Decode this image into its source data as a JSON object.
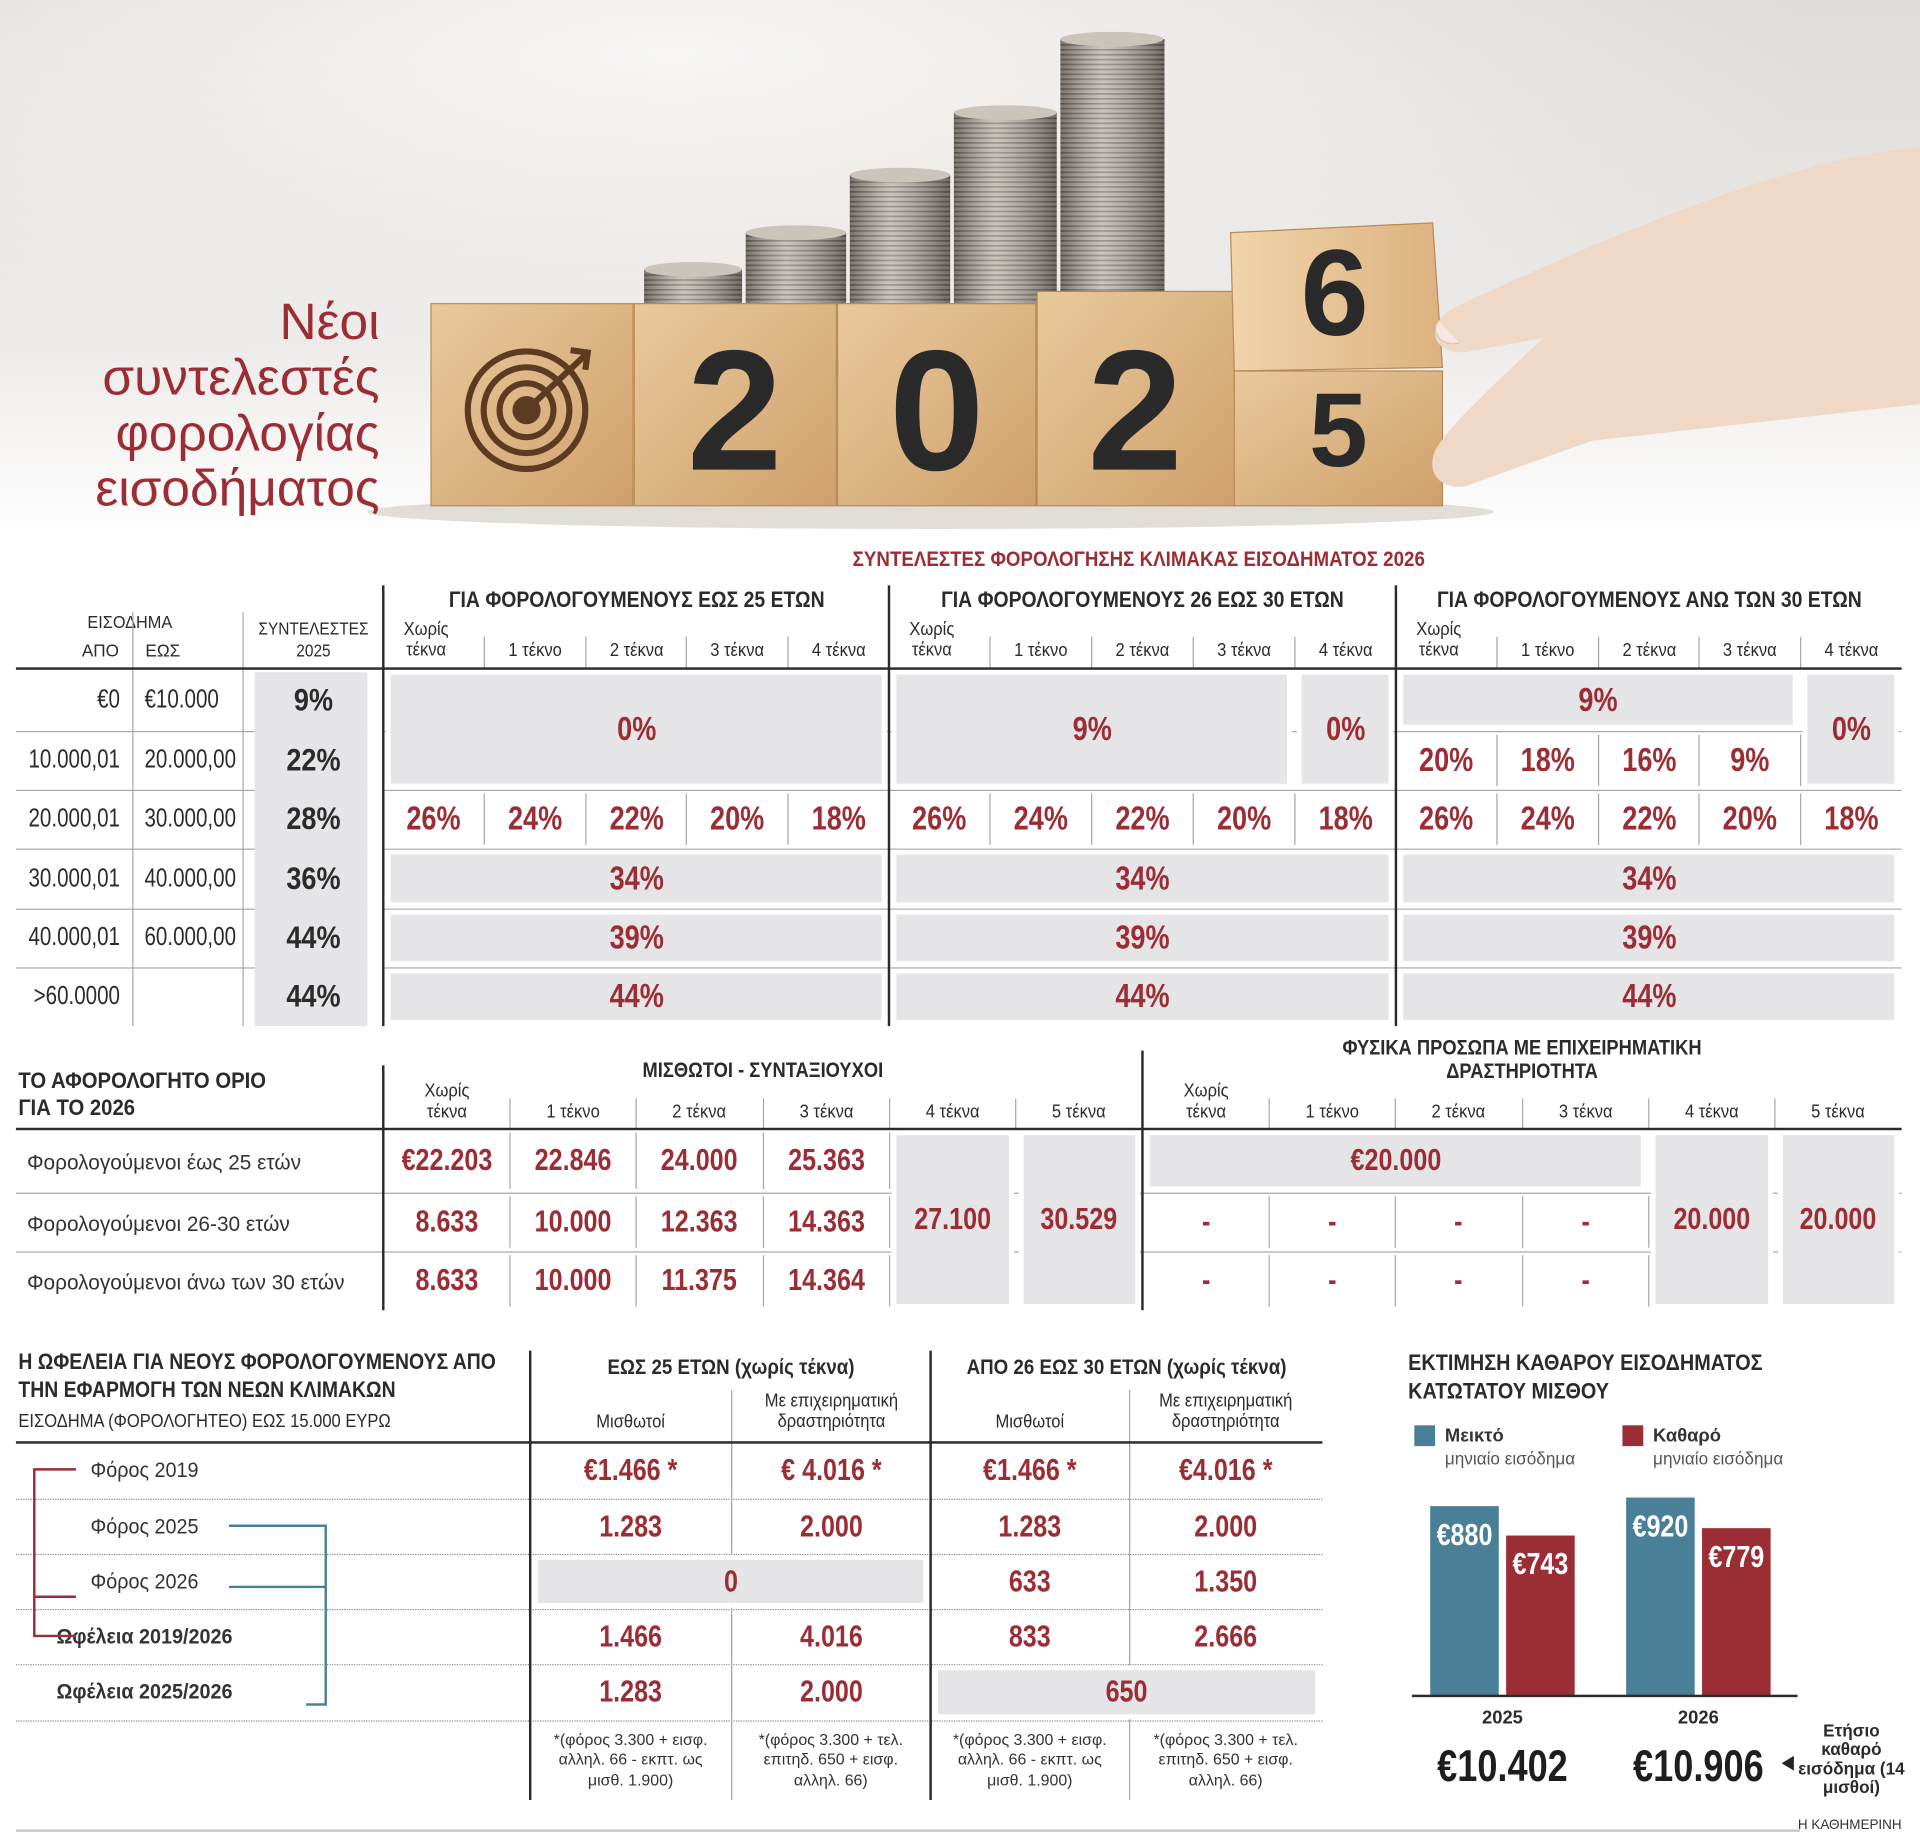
{
  "header": {
    "title": "Νέοι συντελεστές φορολογίας εισοδήματος",
    "image_text": [
      "2",
      "0",
      "2",
      "6",
      "5"
    ]
  },
  "rates_table": {
    "title": "ΣΥΝΤΕΛΕΣΤΕΣ ΦΟΡΟΛΟΓΗΣΗΣ ΚΛΙΜΑΚΑΣ ΕΙΣΟΔΗΜΑΤΟΣ 2026",
    "income_header": "ΕΙΣΟΔΗΜΑ",
    "from_header": "ΑΠΟ",
    "to_header": "ΕΩΣ",
    "rate_2025_header": "ΣΥΝΤΕΛΕΣΤΕΣ 2025",
    "subcolumns": [
      "Χωρίς τέκνα",
      "1 τέκνο",
      "2 τέκνα",
      "3 τέκνα",
      "4 τέκνα"
    ],
    "rows": [
      {
        "from": "€0",
        "to": "€10.000",
        "rate_2025": "9%"
      },
      {
        "from": "10.000,01",
        "to": "20.000,00",
        "rate_2025": "22%"
      },
      {
        "from": "20.000,01",
        "to": "30.000,00",
        "rate_2025": "28%"
      },
      {
        "from": "30.000,01",
        "to": "40.000,00",
        "rate_2025": "36%"
      },
      {
        "from": "40.000,01",
        "to": "60.000,00",
        "rate_2025": "44%"
      },
      {
        "from": ">60.0000",
        "to": null,
        "rate_2025": "44%"
      }
    ],
    "groups": [
      {
        "title": "ΓΙΑ ΦΟΡΟΛΟΓΟΥΜΕΝΟΥΣ ΕΩΣ 25 ΕΤΩΝ",
        "cells": [
          {
            "text": "0%",
            "row": 0,
            "col": 0,
            "rowspan": 2,
            "colspan": 5,
            "shaded": true
          },
          {
            "text": "26%",
            "row": 2,
            "col": 0
          },
          {
            "text": "24%",
            "row": 2,
            "col": 1
          },
          {
            "text": "22%",
            "row": 2,
            "col": 2
          },
          {
            "text": "20%",
            "row": 2,
            "col": 3
          },
          {
            "text": "18%",
            "row": 2,
            "col": 4
          },
          {
            "text": "34%",
            "row": 3,
            "col": 0,
            "colspan": 5,
            "shaded": true
          },
          {
            "text": "39%",
            "row": 4,
            "col": 0,
            "colspan": 5,
            "shaded": true
          },
          {
            "text": "44%",
            "row": 5,
            "col": 0,
            "colspan": 5,
            "shaded": true
          }
        ]
      },
      {
        "title": "ΓΙΑ ΦΟΡΟΛΟΓΟΥΜΕΝΟΥΣ 26 ΕΩΣ 30 ΕΤΩΝ",
        "cells": [
          {
            "text": "9%",
            "row": 0,
            "col": 0,
            "rowspan": 2,
            "colspan": 4,
            "shaded": true
          },
          {
            "text": "0%",
            "row": 0,
            "col": 4,
            "rowspan": 2,
            "shaded": true
          },
          {
            "text": "26%",
            "row": 2,
            "col": 0
          },
          {
            "text": "24%",
            "row": 2,
            "col": 1
          },
          {
            "text": "22%",
            "row": 2,
            "col": 2
          },
          {
            "text": "20%",
            "row": 2,
            "col": 3
          },
          {
            "text": "18%",
            "row": 2,
            "col": 4
          },
          {
            "text": "34%",
            "row": 3,
            "col": 0,
            "colspan": 5,
            "shaded": true
          },
          {
            "text": "39%",
            "row": 4,
            "col": 0,
            "colspan": 5,
            "shaded": true
          },
          {
            "text": "44%",
            "row": 5,
            "col": 0,
            "colspan": 5,
            "shaded": true
          }
        ]
      },
      {
        "title": "ΓΙΑ ΦΟΡΟΛΟΓΟΥΜΕΝΟΥΣ ΑΝΩ ΤΩΝ 30 ΕΤΩΝ",
        "cells": [
          {
            "text": "9%",
            "row": 0,
            "col": 0,
            "colspan": 4,
            "shaded": true
          },
          {
            "text": "0%",
            "row": 0,
            "col": 4,
            "rowspan": 2,
            "shaded": true
          },
          {
            "text": "20%",
            "row": 1,
            "col": 0
          },
          {
            "text": "18%",
            "row": 1,
            "col": 1
          },
          {
            "text": "16%",
            "row": 1,
            "col": 2
          },
          {
            "text": "9%",
            "row": 1,
            "col": 3
          },
          {
            "text": "26%",
            "row": 2,
            "col": 0
          },
          {
            "text": "24%",
            "row": 2,
            "col": 1
          },
          {
            "text": "22%",
            "row": 2,
            "col": 2
          },
          {
            "text": "20%",
            "row": 2,
            "col": 3
          },
          {
            "text": "18%",
            "row": 2,
            "col": 4
          },
          {
            "text": "34%",
            "row": 3,
            "col": 0,
            "colspan": 5,
            "shaded": true
          },
          {
            "text": "39%",
            "row": 4,
            "col": 0,
            "colspan": 5,
            "shaded": true
          },
          {
            "text": "44%",
            "row": 5,
            "col": 0,
            "colspan": 5,
            "shaded": true
          }
        ]
      }
    ]
  },
  "tax_free_table": {
    "title": "ΤΟ ΑΦΟΡΟΛΟΓΗΤΟ ΟΡΙΟ ΓΙΑ ΤΟ 2026",
    "row_labels": [
      "Φορολογούμενοι έως 25 ετών",
      "Φορολογούμενοι 26-30 ετών",
      "Φορολογούμενοι άνω των 30 ετών"
    ],
    "subcolumns": [
      "Χωρίς τέκνα",
      "1 τέκνο",
      "2 τέκνα",
      "3 τέκνα",
      "4 τέκνα",
      "5 τέκνα"
    ],
    "groups": [
      {
        "title": "ΜΙΣΘΩΤΟΙ - ΣΥΝΤΑΞΙΟΥΧΟΙ",
        "cells": [
          {
            "text": "€22.203",
            "row": 0,
            "col": 0
          },
          {
            "text": "22.846",
            "row": 0,
            "col": 1
          },
          {
            "text": "24.000",
            "row": 0,
            "col": 2
          },
          {
            "text": "25.363",
            "row": 0,
            "col": 3
          },
          {
            "text": "27.100",
            "row": 0,
            "col": 4,
            "rowspan": 3,
            "shaded": true
          },
          {
            "text": "30.529",
            "row": 0,
            "col": 5,
            "rowspan": 3,
            "shaded": true
          },
          {
            "text": "8.633",
            "row": 1,
            "col": 0
          },
          {
            "text": "10.000",
            "row": 1,
            "col": 1
          },
          {
            "text": "12.363",
            "row": 1,
            "col": 2
          },
          {
            "text": "14.363",
            "row": 1,
            "col": 3
          },
          {
            "text": "8.633",
            "row": 2,
            "col": 0
          },
          {
            "text": "10.000",
            "row": 2,
            "col": 1
          },
          {
            "text": "11.375",
            "row": 2,
            "col": 2
          },
          {
            "text": "14.364",
            "row": 2,
            "col": 3
          }
        ]
      },
      {
        "title": "ΦΥΣΙΚΑ ΠΡΟΣΩΠΑ ΜΕ ΕΠΙΧΕΙΡΗΜΑΤΙΚΗ ΔΡΑΣΤΗΡΙΟΤΗΤΑ",
        "cells": [
          {
            "text": "€20.000",
            "row": 0,
            "col": 0,
            "colspan": 4,
            "shaded": true
          },
          {
            "text": "20.000",
            "row": 0,
            "col": 4,
            "rowspan": 3,
            "shaded": true
          },
          {
            "text": "20.000",
            "row": 0,
            "col": 5,
            "rowspan": 3,
            "shaded": true
          },
          {
            "text": "-",
            "row": 1,
            "col": 0
          },
          {
            "text": "-",
            "row": 1,
            "col": 1
          },
          {
            "text": "-",
            "row": 1,
            "col": 2
          },
          {
            "text": "-",
            "row": 1,
            "col": 3
          },
          {
            "text": "-",
            "row": 2,
            "col": 0
          },
          {
            "text": "-",
            "row": 2,
            "col": 1
          },
          {
            "text": "-",
            "row": 2,
            "col": 2
          },
          {
            "text": "-",
            "row": 2,
            "col": 3
          }
        ]
      }
    ]
  },
  "benefit_table": {
    "title": "Η ΩΦΕΛΕΙΑ ΓΙΑ ΝΕΟΥΣ ΦΟΡΟΛΟΓΟΥΜΕΝΟΥΣ ΑΠΟ ΤΗΝ ΕΦΑΡΜΟΓΗ ΤΩΝ ΝΕΩΝ ΚΛΙΜΑΚΩΝ",
    "subtitle": "ΕΙΣΟΔΗΜΑ (ΦΟΡΟΛΟΓΗΤΕΟ) ΕΩΣ 15.000 ΕΥΡΩ",
    "row_labels": [
      "Φόρος 2019",
      "Φόρος 2025",
      "Φόρος 2026",
      "Ωφέλεια 2019/2026",
      "Ωφέλεια 2025/2026"
    ],
    "groups": [
      {
        "title": "ΕΩΣ 25 ΕΤΩΝ (χωρίς τέκνα)",
        "subcolumns": [
          "Μισθωτοί",
          "Με επιχειρηματική δραστηριότητα"
        ],
        "cells": [
          {
            "text": "€1.466 *",
            "row": 0,
            "col": 0
          },
          {
            "text": "€ 4.016 *",
            "row": 0,
            "col": 1
          },
          {
            "text": "1.283",
            "row": 1,
            "col": 0
          },
          {
            "text": "2.000",
            "row": 1,
            "col": 1
          },
          {
            "text": "0",
            "row": 2,
            "col": 0,
            "colspan": 2,
            "shaded": true
          },
          {
            "text": "1.466",
            "row": 3,
            "col": 0
          },
          {
            "text": "4.016",
            "row": 3,
            "col": 1
          },
          {
            "text": "1.283",
            "row": 4,
            "col": 0
          },
          {
            "text": "2.000",
            "row": 4,
            "col": 1
          }
        ],
        "footnotes": [
          "*(φόρος 3.300 + εισφ. αλληλ. 66 - εκπτ. ως μισθ. 1.900)",
          "*(φόρος 3.300 + τελ. επιτηδ. 650 + εισφ. αλληλ. 66)"
        ]
      },
      {
        "title": "ΑΠΟ 26 ΕΩΣ 30 ΕΤΩΝ (χωρίς τέκνα)",
        "subcolumns": [
          "Μισθωτοί",
          "Με επιχειρηματική δραστηριότητα"
        ],
        "cells": [
          {
            "text": "€1.466 *",
            "row": 0,
            "col": 0
          },
          {
            "text": "€4.016 *",
            "row": 0,
            "col": 1
          },
          {
            "text": "1.283",
            "row": 1,
            "col": 0
          },
          {
            "text": "2.000",
            "row": 1,
            "col": 1
          },
          {
            "text": "633",
            "row": 2,
            "col": 0
          },
          {
            "text": "1.350",
            "row": 2,
            "col": 1
          },
          {
            "text": "833",
            "row": 3,
            "col": 0
          },
          {
            "text": "2.666",
            "row": 3,
            "col": 1
          },
          {
            "text": "650",
            "row": 4,
            "col": 0,
            "colspan": 2,
            "shaded": true
          }
        ],
        "footnotes": [
          "*(φόρος 3.300 + εισφ. αλληλ. 66 - εκπτ. ως μισθ. 1.900)",
          "*(φόρος 3.300 + τελ. επιτηδ. 650 + εισφ. αλληλ. 66)"
        ]
      }
    ]
  },
  "chart_data": {
    "type": "bar",
    "title": "ΕΚΤΙΜΗΣΗ ΚΑΘΑΡΟΥ ΕΙΣΟΔΗΜΑΤΟΣ ΚΑΤΩΤΑΤΟΥ ΜΙΣΘΟΥ",
    "categories": [
      "2025",
      "2026"
    ],
    "series": [
      {
        "name": "Μεικτό",
        "description": "μηνιαίο εισόδημα",
        "color": "#4a7f98",
        "values": [
          880,
          920
        ],
        "value_labels": [
          "€880",
          "€920"
        ]
      },
      {
        "name": "Καθαρό",
        "description": "μηνιαίο εισόδημα",
        "color": "#9b2d35",
        "values": [
          743,
          779
        ],
        "value_labels": [
          "€743",
          "€779"
        ]
      }
    ],
    "annual_labels": [
      "€10.402",
      "€10.906"
    ],
    "annual_caption": "Ετήσιο καθαρό εισόδημα (14 μισθοί)"
  },
  "source": "Η ΚΑΘΗΜΕΡΙΝΗ"
}
